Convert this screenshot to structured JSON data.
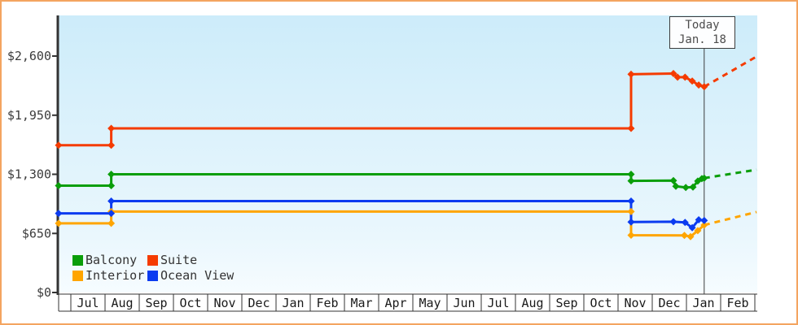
{
  "page": {
    "frame_color": "#f4a460",
    "axis_color": "#333333"
  },
  "today_box": {
    "label_line1": "Today",
    "label_line2": "Jan. 18"
  },
  "chart_data": {
    "type": "line",
    "title": "",
    "y_axis": {
      "range": [
        0,
        3050
      ],
      "ticks": [
        {
          "value": 0,
          "label": "$0"
        },
        {
          "value": 650,
          "label": "$650"
        },
        {
          "value": 1300,
          "label": "$1,300"
        },
        {
          "value": 1950,
          "label": "$1,950"
        },
        {
          "value": 2600,
          "label": "$2,600"
        }
      ]
    },
    "x_axis": {
      "months": [
        "Jul",
        "Aug",
        "Sep",
        "Oct",
        "Nov",
        "Dec",
        "Jan",
        "Feb",
        "Mar",
        "Apr",
        "May",
        "Jun",
        "Jul",
        "Aug",
        "Sep",
        "Oct",
        "Nov",
        "Dec",
        "Jan",
        "Feb"
      ]
    },
    "today": {
      "label_line1": "Today",
      "label_line2": "Jan. 18",
      "month_offset": 18.52
    },
    "legend": [
      {
        "label": "Balcony",
        "color": "#0a9e0a"
      },
      {
        "label": "Suite",
        "color": "#f53b00"
      },
      {
        "label": "Interior",
        "color": "#ffa500"
      },
      {
        "label": "Ocean View",
        "color": "#0b3bf0"
      }
    ],
    "series": [
      {
        "name": "Interior",
        "color": "#ffa500",
        "points": [
          [
            -0.36,
            760
          ],
          [
            1.18,
            760
          ],
          [
            1.18,
            890
          ],
          [
            16.38,
            890
          ],
          [
            16.38,
            630
          ],
          [
            17.94,
            628
          ],
          [
            18.12,
            615
          ],
          [
            18.33,
            680
          ],
          [
            18.52,
            742
          ]
        ],
        "projection": [
          [
            18.52,
            742
          ],
          [
            20.05,
            885
          ]
        ]
      },
      {
        "name": "Ocean View",
        "color": "#0b3bf0",
        "points": [
          [
            -0.36,
            870
          ],
          [
            1.18,
            870
          ],
          [
            1.18,
            1005
          ],
          [
            16.38,
            1005
          ],
          [
            16.38,
            775
          ],
          [
            17.62,
            778
          ],
          [
            17.96,
            770
          ],
          [
            18.17,
            712
          ],
          [
            18.36,
            800
          ],
          [
            18.52,
            792
          ]
        ]
      },
      {
        "name": "Balcony",
        "color": "#0a9e0a",
        "points": [
          [
            -0.36,
            1175
          ],
          [
            1.18,
            1175
          ],
          [
            1.18,
            1300
          ],
          [
            16.38,
            1300
          ],
          [
            16.38,
            1228
          ],
          [
            17.62,
            1230
          ],
          [
            17.69,
            1168
          ],
          [
            17.98,
            1155
          ],
          [
            18.19,
            1160
          ],
          [
            18.33,
            1225
          ],
          [
            18.45,
            1252
          ],
          [
            18.52,
            1258
          ]
        ],
        "projection": [
          [
            18.52,
            1258
          ],
          [
            20.05,
            1350
          ]
        ]
      },
      {
        "name": "Suite",
        "color": "#f53b00",
        "points": [
          [
            -0.36,
            1620
          ],
          [
            1.18,
            1620
          ],
          [
            1.18,
            1805
          ],
          [
            16.38,
            1805
          ],
          [
            16.38,
            2400
          ],
          [
            17.62,
            2408
          ],
          [
            17.74,
            2368
          ],
          [
            17.96,
            2368
          ],
          [
            18.17,
            2325
          ],
          [
            18.36,
            2282
          ],
          [
            18.52,
            2262
          ]
        ],
        "projection": [
          [
            18.52,
            2262
          ],
          [
            20.05,
            2595
          ]
        ]
      }
    ]
  }
}
